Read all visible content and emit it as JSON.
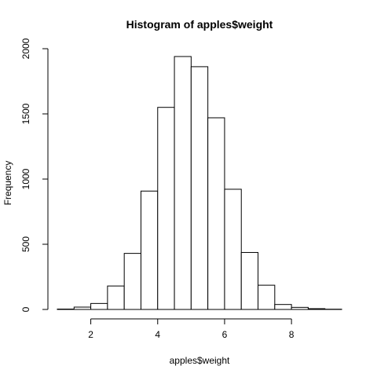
{
  "chart_data": {
    "type": "bar",
    "title": "Histogram of apples$weight",
    "xlabel": "apples$weight",
    "ylabel": "Frequency",
    "bin_width": 0.5,
    "bins": [
      {
        "start": 1.0,
        "end": 1.5,
        "count": 3
      },
      {
        "start": 1.5,
        "end": 2.0,
        "count": 18
      },
      {
        "start": 2.0,
        "end": 2.5,
        "count": 46
      },
      {
        "start": 2.5,
        "end": 3.0,
        "count": 180
      },
      {
        "start": 3.0,
        "end": 3.5,
        "count": 430
      },
      {
        "start": 3.5,
        "end": 4.0,
        "count": 908
      },
      {
        "start": 4.0,
        "end": 4.5,
        "count": 1550
      },
      {
        "start": 4.5,
        "end": 5.0,
        "count": 1940
      },
      {
        "start": 5.0,
        "end": 5.5,
        "count": 1862
      },
      {
        "start": 5.5,
        "end": 6.0,
        "count": 1470
      },
      {
        "start": 6.0,
        "end": 6.5,
        "count": 922
      },
      {
        "start": 6.5,
        "end": 7.0,
        "count": 437
      },
      {
        "start": 7.0,
        "end": 7.5,
        "count": 186
      },
      {
        "start": 7.5,
        "end": 8.0,
        "count": 38
      },
      {
        "start": 8.0,
        "end": 8.5,
        "count": 16
      },
      {
        "start": 8.5,
        "end": 9.0,
        "count": 6
      },
      {
        "start": 9.0,
        "end": 9.5,
        "count": 2
      }
    ],
    "xticks": [
      2,
      4,
      6,
      8
    ],
    "xtick_labels": [
      "2",
      "4",
      "6",
      "8"
    ],
    "yticks": [
      0,
      500,
      1000,
      1500,
      2000
    ],
    "ytick_labels": [
      "0",
      "500",
      "1000",
      "1500",
      "2000"
    ],
    "xlim": [
      1.0,
      9.5
    ],
    "ylim": [
      0,
      2000
    ],
    "grid": false,
    "legend": "none"
  }
}
